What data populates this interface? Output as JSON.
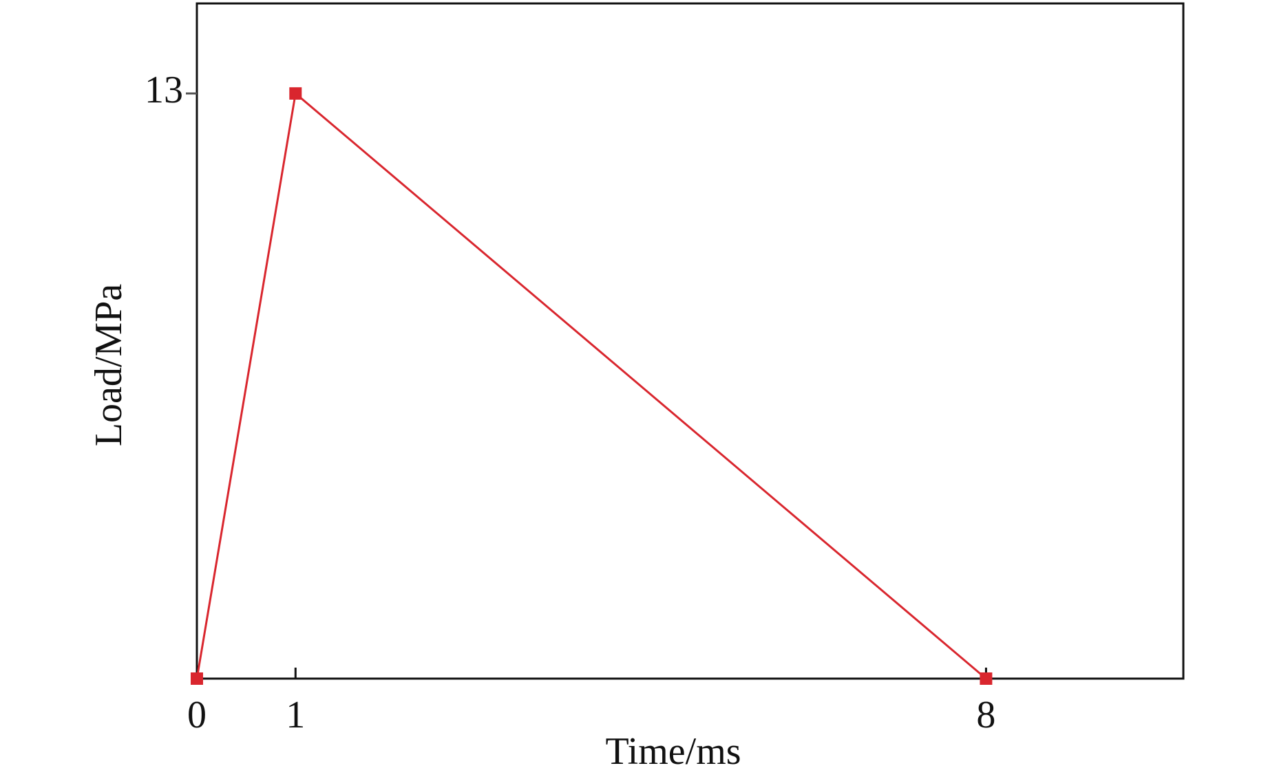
{
  "chart_data": {
    "type": "line",
    "x_label": "Time/ms",
    "y_label": "Load/MPa",
    "x": [
      0,
      1,
      8
    ],
    "series": [
      {
        "color": "#d9262e",
        "values": [
          0,
          13,
          0
        ]
      }
    ],
    "xlim": [
      0,
      10
    ],
    "ylim": [
      0,
      15
    ],
    "xticks": [
      0,
      1,
      8
    ],
    "yticks": [
      13
    ]
  }
}
